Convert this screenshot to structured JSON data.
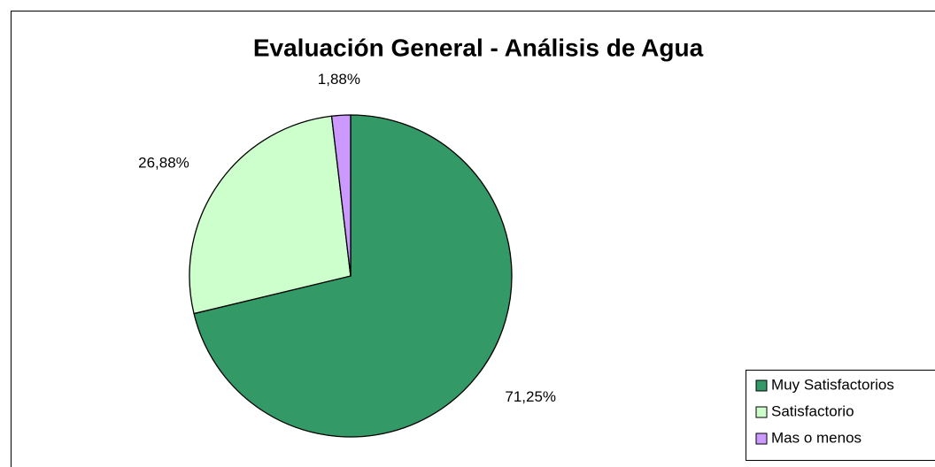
{
  "chart_data": {
    "type": "pie",
    "title": "Evaluación General - Análisis de Agua",
    "categories": [
      "Muy Satisfactorios",
      "Satisfactorio",
      "Mas o menos"
    ],
    "values": [
      71.25,
      26.88,
      1.88
    ],
    "value_labels": [
      "71,25%",
      "26,88%",
      "1,88%"
    ],
    "colors": [
      "#339966",
      "#ccffcc",
      "#cc99ff"
    ],
    "legend": "bottom-right"
  }
}
